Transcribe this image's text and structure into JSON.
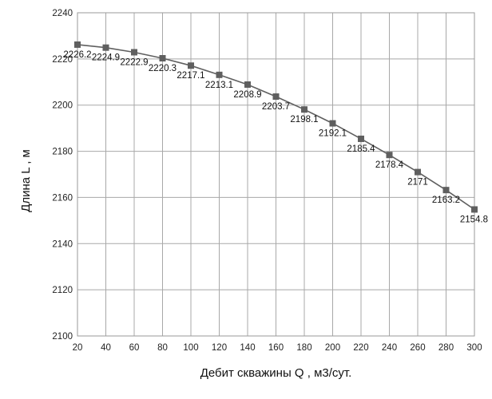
{
  "chart_data": {
    "type": "line",
    "xlabel": "Дебит скважины Q , м3/сут.",
    "ylabel": "Длина L , м",
    "xlim": [
      20,
      300
    ],
    "ylim": [
      2100,
      2240
    ],
    "x_ticks": [
      20,
      40,
      60,
      80,
      100,
      120,
      140,
      160,
      180,
      200,
      220,
      240,
      260,
      280,
      300
    ],
    "y_ticks": [
      2100,
      2120,
      2140,
      2160,
      2180,
      2200,
      2220,
      2240
    ],
    "grid": true,
    "legend": "none",
    "series": [
      {
        "x": [
          20,
          40,
          60,
          80,
          100,
          120,
          140,
          160,
          180,
          200,
          220,
          240,
          260,
          280,
          300
        ],
        "values": [
          2226.2,
          2224.9,
          2222.9,
          2220.3,
          2217.1,
          2213.1,
          2208.9,
          2203.7,
          2198.1,
          2192.1,
          2185.4,
          2178.4,
          2171,
          2163.2,
          2154.8
        ],
        "labels": [
          "2226.2",
          "2224.9",
          "2222.9",
          "2220.3",
          "2217.1",
          "2213.1",
          "2208.9",
          "2203.7",
          "2198.1",
          "2192.1",
          "2185.4",
          "2178.4",
          "2171",
          "2163.2",
          "2154.8"
        ],
        "color": "#5f5f5f",
        "marker": "square"
      }
    ]
  }
}
